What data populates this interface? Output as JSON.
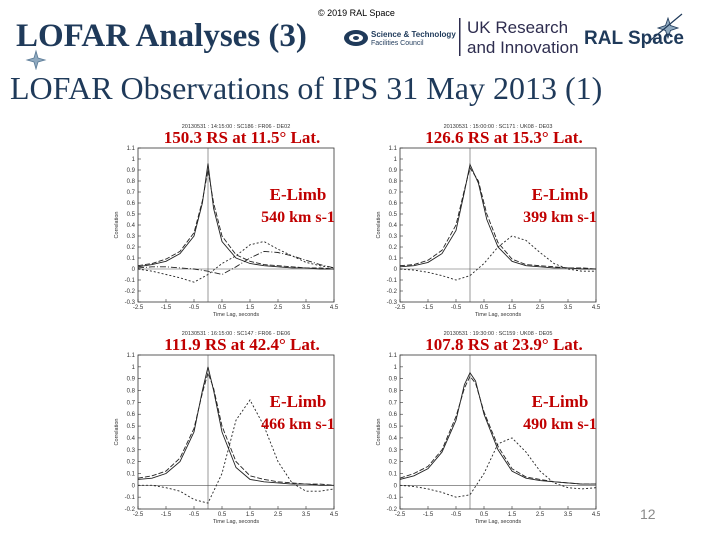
{
  "header": {
    "copyright": "© 2019 RAL Space",
    "title": "LOFAR Analyses (3)",
    "subtitle": "LOFAR Observations of IPS 31 May 2013 (1)",
    "stfc_line1": "Science & Technology",
    "stfc_line2": "Facilities Council",
    "ukri_line1": "UK Research",
    "ukri_line2": "and Innovation",
    "ral_text": "RAL Space",
    "page_number": "12"
  },
  "colors": {
    "title": "#1f3a5a",
    "annotation": "#c00000",
    "curves": "#222222"
  },
  "chart_data": [
    {
      "type": "line",
      "header": "20130531 : 14:15:00 : SC186 : FR06 - DE02",
      "distance": "150.3 RS at 11.5° Lat.",
      "direction": "E-Limb",
      "speed": "540 km s-1",
      "xlabel": "Time Lag, seconds",
      "ylabel": "Correlation",
      "xlim": [
        -2.5,
        4.5
      ],
      "ylim": [
        -0.3,
        1.1
      ],
      "xticks": [
        "-2.5",
        "-1.5",
        "-0.5",
        "0.5",
        "1.5",
        "2.5",
        "3.5",
        "4.5"
      ],
      "yticks": [
        "1.1",
        "1",
        "0.9",
        "0.8",
        "0.7",
        "0.6",
        "0.5",
        "0.4",
        "0.3",
        "0.2",
        "0.1",
        "0",
        "-0.1",
        "-0.2",
        "-0.3"
      ],
      "series": [
        {
          "x": [
            -2.5,
            -2,
            -1.5,
            -1,
            -0.5,
            -0.2,
            0,
            0.2,
            0.5,
            1,
            1.5,
            2,
            2.5,
            3,
            3.5,
            4,
            4.5
          ],
          "y": [
            0.02,
            0.04,
            0.07,
            0.14,
            0.3,
            0.6,
            0.96,
            0.55,
            0.25,
            0.1,
            0.05,
            0.03,
            0.02,
            0.01,
            0.01,
            0,
            0
          ]
        },
        {
          "x": [
            -2.5,
            -2,
            -1.5,
            -1,
            -0.5,
            -0.2,
            0,
            0.2,
            0.5,
            1,
            1.5,
            2,
            2.5,
            3,
            3.5,
            4,
            4.5
          ],
          "y": [
            0.03,
            0.05,
            0.09,
            0.16,
            0.33,
            0.62,
            0.9,
            0.6,
            0.3,
            0.13,
            0.07,
            0.04,
            0.03,
            0.02,
            0.01,
            0.01,
            0
          ]
        },
        {
          "x": [
            -2.5,
            -2,
            -1.5,
            -1,
            -0.5,
            0,
            0.5,
            1,
            1.5,
            2,
            2.5,
            3,
            3.5,
            4,
            4.5
          ],
          "y": [
            0,
            -0.02,
            -0.05,
            -0.08,
            -0.12,
            -0.05,
            0.05,
            0.12,
            0.22,
            0.25,
            0.18,
            0.12,
            0.06,
            0.03,
            0.01
          ]
        },
        {
          "x": [
            -2.5,
            -2,
            -1.5,
            -1,
            -0.5,
            0,
            0.5,
            1,
            1.5,
            2,
            2.5,
            3,
            3.5,
            4,
            4.5
          ],
          "y": [
            0.01,
            0.02,
            0.02,
            0.01,
            0,
            -0.02,
            -0.05,
            0.02,
            0.1,
            0.16,
            0.15,
            0.12,
            0.08,
            0.04,
            0.01
          ]
        }
      ]
    },
    {
      "type": "line",
      "header": "20130531 : 15:00:00 : SC171 : UK08 - DE03",
      "distance": "126.6 RS at 15.3° Lat.",
      "direction": "E-Limb",
      "speed": "399 km s-1",
      "xlabel": "Time Lag, seconds",
      "ylabel": "Correlation",
      "xlim": [
        -2.5,
        4.5
      ],
      "ylim": [
        -0.3,
        1.1
      ],
      "xticks": [
        "-2.5",
        "-1.5",
        "-0.5",
        "0.5",
        "1.5",
        "2.5",
        "3.5",
        "4.5"
      ],
      "yticks": [
        "1.1",
        "1",
        "0.9",
        "0.8",
        "0.7",
        "0.6",
        "0.5",
        "0.4",
        "0.3",
        "0.2",
        "0.1",
        "0",
        "-0.1",
        "-0.2",
        "-0.3"
      ],
      "series": [
        {
          "x": [
            -2.5,
            -2,
            -1.5,
            -1,
            -0.5,
            -0.2,
            0,
            0.3,
            0.6,
            1,
            1.5,
            2,
            2.5,
            3,
            3.5,
            4,
            4.5
          ],
          "y": [
            0.02,
            0.03,
            0.06,
            0.14,
            0.35,
            0.7,
            0.95,
            0.78,
            0.45,
            0.2,
            0.07,
            0.03,
            0.02,
            0.01,
            0.01,
            0,
            0
          ]
        },
        {
          "x": [
            -2.5,
            -2,
            -1.5,
            -1,
            -0.5,
            -0.2,
            0,
            0.3,
            0.6,
            1,
            1.5,
            2,
            2.5,
            3,
            3.5,
            4,
            4.5
          ],
          "y": [
            0.03,
            0.04,
            0.08,
            0.17,
            0.4,
            0.72,
            0.92,
            0.8,
            0.5,
            0.24,
            0.09,
            0.04,
            0.03,
            0.02,
            0.01,
            0.01,
            0
          ]
        },
        {
          "x": [
            -2.5,
            -2,
            -1.5,
            -1,
            -0.5,
            0,
            0.5,
            1,
            1.5,
            2,
            2.5,
            3,
            3.5,
            4,
            4.5
          ],
          "y": [
            0,
            -0.01,
            -0.03,
            -0.06,
            -0.1,
            -0.06,
            0.05,
            0.2,
            0.3,
            0.26,
            0.15,
            0.05,
            0,
            -0.02,
            -0.02
          ]
        }
      ]
    },
    {
      "type": "line",
      "header": "20130531 : 16:15:00 : SC147 : FR06 - DE06",
      "distance": "111.9 RS at 42.4° Lat.",
      "direction": "E-Limb",
      "speed": "466 km s-1",
      "xlabel": "Time Lag, seconds",
      "ylabel": "Correlation",
      "xlim": [
        -2.5,
        4.5
      ],
      "ylim": [
        -0.2,
        1.1
      ],
      "xticks": [
        "-2.5",
        "-1.5",
        "-0.5",
        "0.5",
        "1.5",
        "2.5",
        "3.5",
        "4.5"
      ],
      "yticks": [
        "1.1",
        "1",
        "0.9",
        "0.8",
        "0.7",
        "0.6",
        "0.5",
        "0.4",
        "0.3",
        "0.2",
        "0.1",
        "0",
        "-0.1",
        "-0.2"
      ],
      "series": [
        {
          "x": [
            -2.5,
            -2,
            -1.5,
            -1,
            -0.5,
            -0.2,
            0,
            0.2,
            0.5,
            1,
            1.5,
            2,
            2.5,
            3,
            3.5,
            4,
            4.5
          ],
          "y": [
            0.05,
            0.06,
            0.1,
            0.2,
            0.45,
            0.8,
            1.0,
            0.8,
            0.45,
            0.15,
            0.05,
            0.03,
            0.02,
            0.01,
            0.01,
            0,
            0
          ]
        },
        {
          "x": [
            -2.5,
            -2,
            -1.5,
            -1,
            -0.5,
            -0.2,
            0,
            0.2,
            0.5,
            1,
            1.5,
            2,
            2.5,
            3,
            3.5,
            4,
            4.5
          ],
          "y": [
            0.06,
            0.08,
            0.12,
            0.23,
            0.48,
            0.78,
            0.95,
            0.82,
            0.5,
            0.2,
            0.08,
            0.05,
            0.03,
            0.02,
            0.01,
            0.01,
            0
          ]
        },
        {
          "x": [
            -2.5,
            -2,
            -1.5,
            -1,
            -0.5,
            0,
            0.5,
            1,
            1.5,
            2,
            2.5,
            3,
            3.5,
            4,
            4.5
          ],
          "y": [
            0,
            0,
            -0.02,
            -0.05,
            -0.12,
            -0.15,
            0.1,
            0.55,
            0.72,
            0.5,
            0.2,
            0.02,
            -0.05,
            -0.05,
            -0.03
          ]
        }
      ]
    },
    {
      "type": "line",
      "header": "20130531 : 19:30:00 : SC159 : UK08 - DE05",
      "distance": "107.8 RS at 23.9° Lat.",
      "direction": "E-Limb",
      "speed": "490 km s-1",
      "xlabel": "Time Lag, seconds",
      "ylabel": "Correlation",
      "xlim": [
        -2.5,
        4.5
      ],
      "ylim": [
        -0.2,
        1.1
      ],
      "xticks": [
        "-2.5",
        "-1.5",
        "-0.5",
        "0.5",
        "1.5",
        "2.5",
        "3.5",
        "4.5"
      ],
      "yticks": [
        "1.1",
        "1",
        "0.9",
        "0.8",
        "0.7",
        "0.6",
        "0.5",
        "0.4",
        "0.3",
        "0.2",
        "0.1",
        "0",
        "-0.1",
        "-0.2"
      ],
      "series": [
        {
          "x": [
            -2.5,
            -2,
            -1.5,
            -1,
            -0.5,
            -0.2,
            0,
            0.2,
            0.5,
            1,
            1.5,
            2,
            2.5,
            3,
            3.5,
            4,
            4.5
          ],
          "y": [
            0.05,
            0.08,
            0.14,
            0.28,
            0.55,
            0.85,
            0.95,
            0.88,
            0.6,
            0.3,
            0.12,
            0.06,
            0.04,
            0.03,
            0.02,
            0.01,
            0.01
          ]
        },
        {
          "x": [
            -2.5,
            -2,
            -1.5,
            -1,
            -0.5,
            -0.2,
            0,
            0.2,
            0.5,
            1,
            1.5,
            2,
            2.5,
            3,
            3.5,
            4,
            4.5
          ],
          "y": [
            0.06,
            0.1,
            0.16,
            0.3,
            0.58,
            0.82,
            0.92,
            0.86,
            0.62,
            0.33,
            0.14,
            0.07,
            0.05,
            0.03,
            0.02,
            0.01,
            0.01
          ]
        },
        {
          "x": [
            -2.5,
            -2,
            -1.5,
            -1,
            -0.5,
            0,
            0.5,
            1,
            1.5,
            2,
            2.5,
            3,
            3.5,
            4,
            4.5
          ],
          "y": [
            0,
            -0.01,
            -0.03,
            -0.06,
            -0.1,
            -0.08,
            0.1,
            0.35,
            0.4,
            0.28,
            0.12,
            0.02,
            -0.02,
            -0.03,
            -0.02
          ]
        }
      ]
    }
  ]
}
